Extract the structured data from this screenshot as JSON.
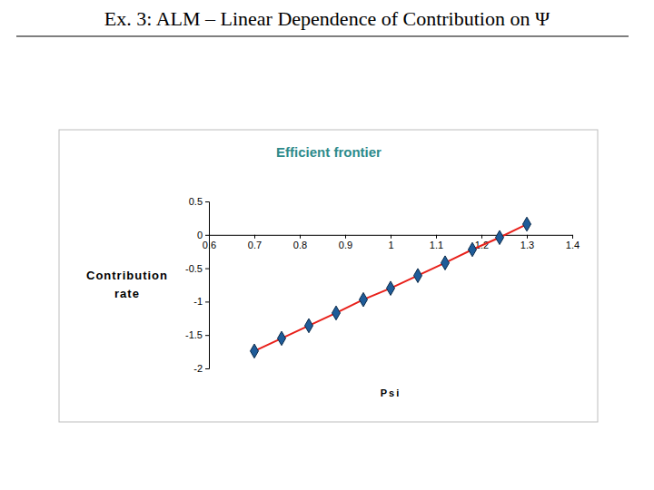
{
  "heading": "Ex. 3: ALM – Linear Dependence of Contribution on Ψ",
  "chart_data": {
    "type": "line",
    "title": "Efficient frontier",
    "xlabel": "Psi",
    "ylabel": "Contribution rate",
    "series": [
      {
        "name": null,
        "color": "#e8201a",
        "marker": "diamond",
        "x": [
          0.7,
          0.76,
          0.82,
          0.88,
          0.94,
          1.0,
          1.06,
          1.12,
          1.18,
          1.24,
          1.3
        ],
        "values": [
          -1.74,
          -1.55,
          -1.36,
          -1.17,
          -0.97,
          -0.8,
          -0.61,
          -0.42,
          -0.22,
          -0.04,
          0.16
        ]
      }
    ],
    "xlim": [
      0.6,
      1.4
    ],
    "xticks": [
      0.6,
      0.7,
      0.8,
      0.9,
      1,
      1.1,
      1.2,
      1.3,
      1.4
    ],
    "ylim": [
      -2,
      0.5
    ],
    "yticks": [
      0.5,
      0,
      -0.5,
      -1,
      -1.5,
      -2
    ],
    "grid": false
  }
}
